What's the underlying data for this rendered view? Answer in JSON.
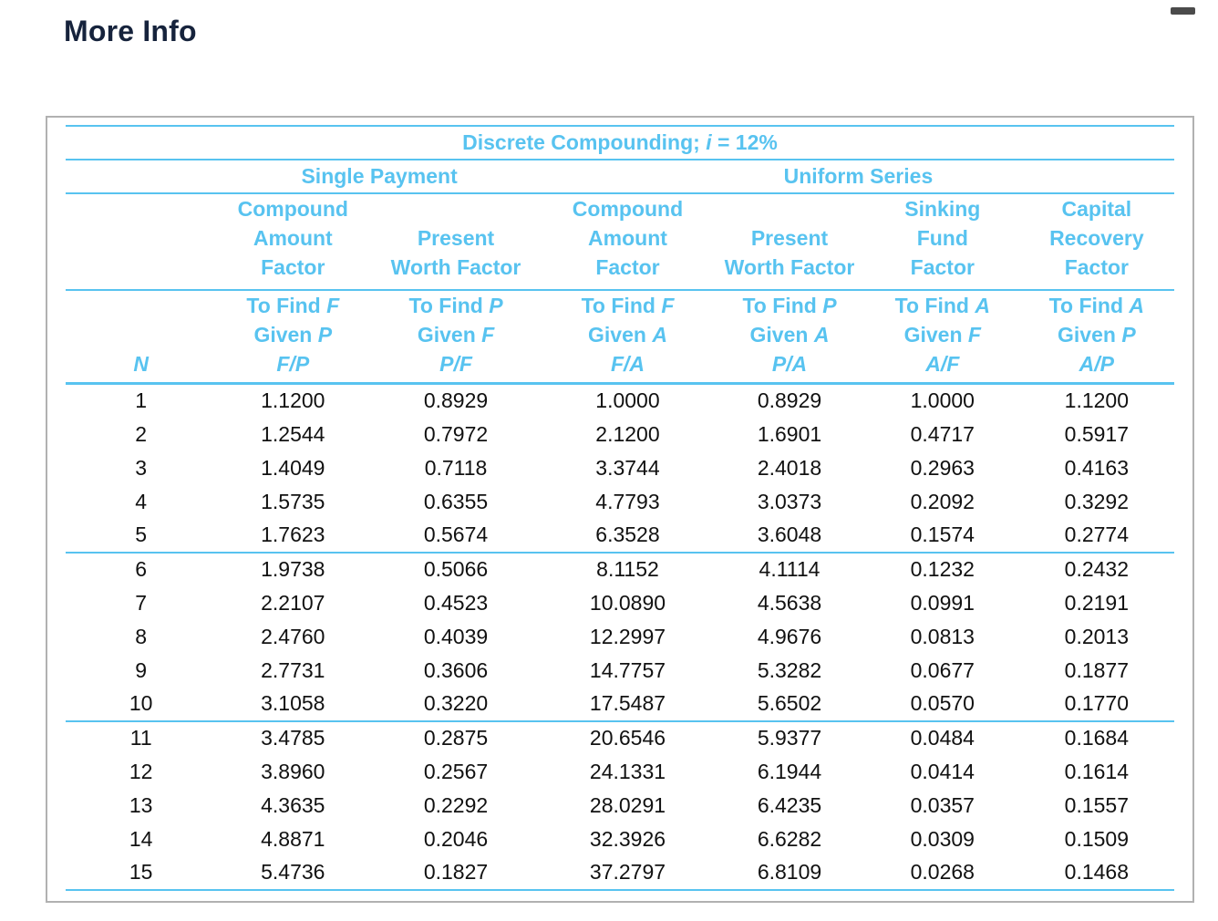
{
  "page": {
    "title": "More Info"
  },
  "colors": {
    "accent": "#58c3f0",
    "heading": "#16233c",
    "data_text": "#111111",
    "panel_border": "#b1b1b1",
    "pill": "#4b4b4b"
  },
  "table": {
    "title": {
      "pre": "Discrete Compounding; ",
      "var": "i",
      "post": " = 12%"
    },
    "groups": [
      {
        "label": "Single Payment",
        "span": 2
      },
      {
        "label": "Uniform Series",
        "span": 4
      }
    ],
    "n_header": "N",
    "columns": [
      {
        "name": [
          "Compound",
          "Amount",
          "Factor"
        ],
        "find_pre": "To Find ",
        "find_var": "F",
        "given_pre": "Given ",
        "given_var": "P",
        "ratio": "F/P"
      },
      {
        "name": [
          "Present",
          "Worth Factor"
        ],
        "find_pre": "To Find ",
        "find_var": "P",
        "given_pre": "Given ",
        "given_var": "F",
        "ratio": "P/F"
      },
      {
        "name": [
          "Compound",
          "Amount",
          "Factor"
        ],
        "find_pre": "To Find ",
        "find_var": "F",
        "given_pre": "Given ",
        "given_var": "A",
        "ratio": "F/A"
      },
      {
        "name": [
          "Present",
          "Worth Factor"
        ],
        "find_pre": "To Find ",
        "find_var": "P",
        "given_pre": "Given ",
        "given_var": "A",
        "ratio": "P/A"
      },
      {
        "name": [
          "Sinking",
          "Fund",
          "Factor"
        ],
        "find_pre": "To Find ",
        "find_var": "A",
        "given_pre": "Given ",
        "given_var": "F",
        "ratio": "A/F"
      },
      {
        "name": [
          "Capital",
          "Recovery",
          "Factor"
        ],
        "find_pre": "To Find ",
        "find_var": "A",
        "given_pre": "Given ",
        "given_var": "P",
        "ratio": "A/P"
      }
    ],
    "sections": [
      [
        [
          "1",
          "1.1200",
          "0.8929",
          "1.0000",
          "0.8929",
          "1.0000",
          "1.1200"
        ],
        [
          "2",
          "1.2544",
          "0.7972",
          "2.1200",
          "1.6901",
          "0.4717",
          "0.5917"
        ],
        [
          "3",
          "1.4049",
          "0.7118",
          "3.3744",
          "2.4018",
          "0.2963",
          "0.4163"
        ],
        [
          "4",
          "1.5735",
          "0.6355",
          "4.7793",
          "3.0373",
          "0.2092",
          "0.3292"
        ],
        [
          "5",
          "1.7623",
          "0.5674",
          "6.3528",
          "3.6048",
          "0.1574",
          "0.2774"
        ]
      ],
      [
        [
          "6",
          "1.9738",
          "0.5066",
          "8.1152",
          "4.1114",
          "0.1232",
          "0.2432"
        ],
        [
          "7",
          "2.2107",
          "0.4523",
          "10.0890",
          "4.5638",
          "0.0991",
          "0.2191"
        ],
        [
          "8",
          "2.4760",
          "0.4039",
          "12.2997",
          "4.9676",
          "0.0813",
          "0.2013"
        ],
        [
          "9",
          "2.7731",
          "0.3606",
          "14.7757",
          "5.3282",
          "0.0677",
          "0.1877"
        ],
        [
          "10",
          "3.1058",
          "0.3220",
          "17.5487",
          "5.6502",
          "0.0570",
          "0.1770"
        ]
      ],
      [
        [
          "11",
          "3.4785",
          "0.2875",
          "20.6546",
          "5.9377",
          "0.0484",
          "0.1684"
        ],
        [
          "12",
          "3.8960",
          "0.2567",
          "24.1331",
          "6.1944",
          "0.0414",
          "0.1614"
        ],
        [
          "13",
          "4.3635",
          "0.2292",
          "28.0291",
          "6.4235",
          "0.0357",
          "0.1557"
        ],
        [
          "14",
          "4.8871",
          "0.2046",
          "32.3926",
          "6.6282",
          "0.0309",
          "0.1509"
        ],
        [
          "15",
          "5.4736",
          "0.1827",
          "37.2797",
          "6.8109",
          "0.0268",
          "0.1468"
        ]
      ]
    ]
  }
}
